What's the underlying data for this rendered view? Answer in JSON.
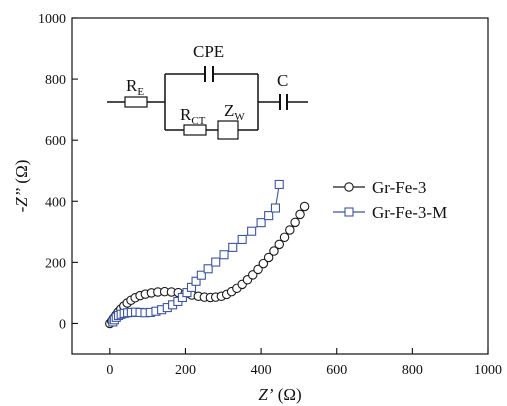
{
  "chart_data": {
    "type": "scatter",
    "xlabel_main": "Z’",
    "xlabel_unit": " (Ω)",
    "ylabel_main": "-Z’’",
    "ylabel_unit": " (Ω)",
    "xlim": [
      -100,
      1000
    ],
    "ylim": [
      -100,
      1000
    ],
    "xticks": [
      0,
      200,
      400,
      600,
      800,
      1000
    ],
    "yticks": [
      0,
      200,
      400,
      600,
      800,
      1000
    ],
    "x_tick_labels": [
      "0",
      "200",
      "400",
      "600",
      "800",
      "1000"
    ],
    "y_tick_labels": [
      "0",
      "200",
      "400",
      "600",
      "800",
      "1000"
    ],
    "legend_position": "right",
    "series": [
      {
        "name": "Gr-Fe-3",
        "marker": "circle",
        "color": "#1a1a1a",
        "x": [
          0,
          5,
          10,
          16,
          22,
          29,
          37,
          46,
          56,
          67,
          80,
          94,
          110,
          127,
          145,
          163,
          181,
          199,
          217,
          234,
          250,
          266,
          280,
          295,
          309,
          322,
          336,
          350,
          364,
          378,
          392,
          406,
          420,
          434,
          448,
          462,
          476,
          490,
          503,
          515
        ],
        "y": [
          0,
          8,
          17,
          27,
          37,
          47,
          57,
          67,
          76,
          84,
          91,
          96,
          100,
          103,
          104,
          103,
          101,
          97,
          93,
          89,
          86,
          85,
          86,
          89,
          95,
          104,
          115,
          128,
          143,
          159,
          177,
          196,
          216,
          237,
          259,
          282,
          306,
          331,
          357,
          383
        ]
      },
      {
        "name": "Gr-Fe-3-M",
        "marker": "square",
        "color": "#3c55a5",
        "x": [
          8,
          12,
          17,
          23,
          30,
          38,
          47,
          57,
          68,
          80,
          93,
          107,
          122,
          137,
          152,
          166,
          180,
          192,
          204,
          216,
          228,
          242,
          260,
          280,
          302,
          325,
          350,
          375,
          400,
          420,
          438,
          448
        ],
        "y": [
          5,
          12,
          20,
          26,
          30,
          33,
          35,
          36,
          37,
          36,
          35,
          36,
          40,
          45,
          52,
          61,
          72,
          85,
          101,
          118,
          138,
          158,
          179,
          201,
          225,
          249,
          275,
          302,
          330,
          353,
          378,
          455
        ]
      }
    ]
  },
  "circuit": {
    "re_main": "R",
    "re_sub": "E",
    "cpe_label": "CPE",
    "rct_main": "R",
    "rct_sub": "CT",
    "zw_main": "Z",
    "zw_sub": "W",
    "c_label": "C"
  }
}
